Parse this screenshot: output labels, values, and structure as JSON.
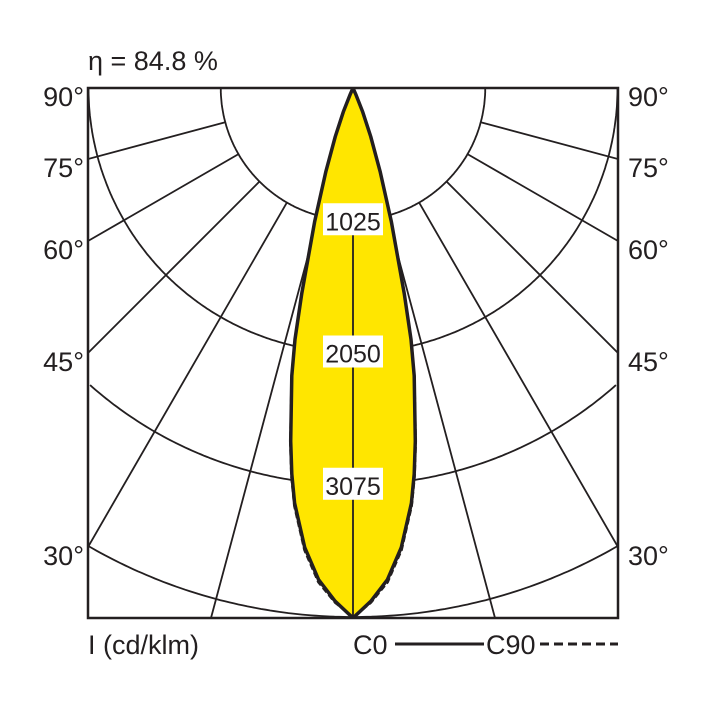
{
  "chart_data": {
    "type": "polar",
    "title": "η = 84.8 %",
    "unit_label": "I (cd/klm)",
    "radial_ticks": [
      1025,
      2050,
      3075
    ],
    "radial_max": 4100,
    "angle_ticks_left": [
      "90°",
      "75°",
      "60°",
      "45°",
      "30°"
    ],
    "angle_ticks_right": [
      "90°",
      "75°",
      "60°",
      "45°",
      "30°"
    ],
    "angle_tick_values": [
      90,
      75,
      60,
      45,
      30
    ],
    "angle_grid_step_deg": 15,
    "fill_color": "#ffe600",
    "line_color": "#231f20",
    "series": [
      {
        "name": "C0",
        "style": "solid",
        "angles_deg": [
          0,
          2,
          4,
          6,
          8,
          9,
          10,
          12,
          13,
          14,
          16,
          18,
          20,
          22,
          24,
          26
        ],
        "values": [
          4110,
          3980,
          3820,
          3580,
          3250,
          3030,
          2780,
          2280,
          2000,
          1640,
          1080,
          680,
          400,
          200,
          60,
          0
        ]
      },
      {
        "name": "C90",
        "style": "dashed",
        "angles_deg": [
          0,
          2,
          4,
          6,
          8,
          9,
          10,
          12,
          13,
          14,
          16,
          18,
          20,
          22,
          24,
          26
        ],
        "values": [
          4100,
          3990,
          3840,
          3600,
          3270,
          3050,
          2800,
          2290,
          2010,
          1650,
          1090,
          690,
          405,
          205,
          60,
          0
        ]
      }
    ]
  }
}
